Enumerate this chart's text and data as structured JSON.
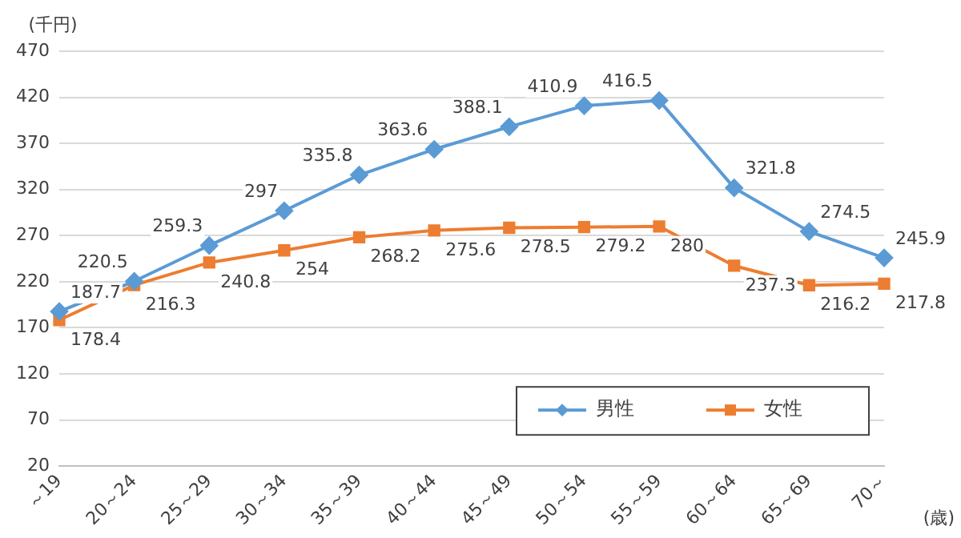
{
  "chart_data": {
    "type": "line",
    "ylabel": "(千円)",
    "xlabel": "(歳)",
    "categories": [
      "～19",
      "20～24",
      "25～29",
      "30～34",
      "35～39",
      "40～44",
      "45～49",
      "50～54",
      "55～59",
      "60～64",
      "65～69",
      "70～"
    ],
    "series": [
      {
        "name": "男性",
        "color": "#5b9bd5",
        "marker": "diamond",
        "values": [
          187.7,
          220.5,
          259.3,
          297,
          335.8,
          363.6,
          388.1,
          410.9,
          416.5,
          321.8,
          274.5,
          245.9
        ]
      },
      {
        "name": "女性",
        "color": "#ed7d31",
        "marker": "square",
        "values": [
          178.4,
          216.3,
          240.8,
          254,
          268.2,
          275.6,
          278.5,
          279.2,
          280,
          237.3,
          216.2,
          217.8
        ]
      }
    ],
    "ylim": [
      20,
      470
    ],
    "yticks": [
      20,
      70,
      120,
      170,
      220,
      270,
      320,
      370,
      420,
      470
    ],
    "grid": "y",
    "legend": "bottom right",
    "data_labels": true
  }
}
